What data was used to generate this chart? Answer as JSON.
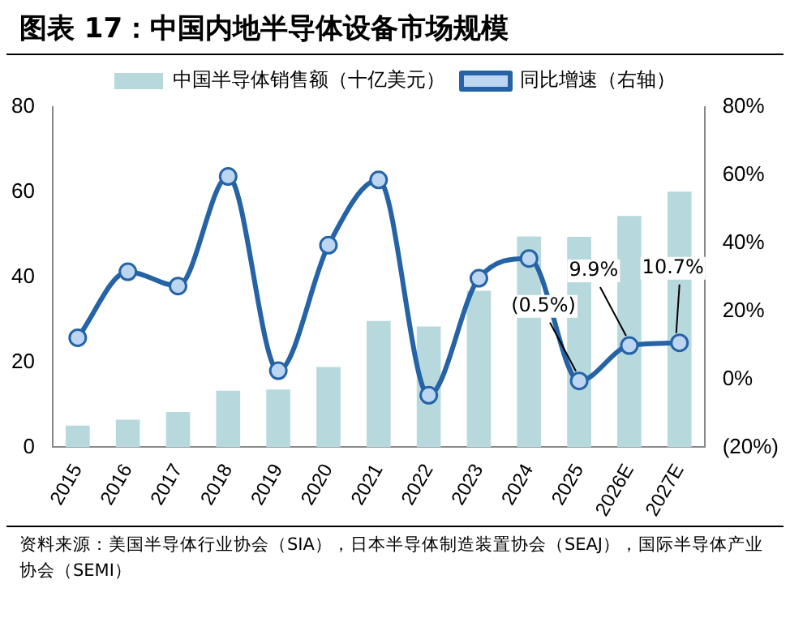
{
  "chart_data": {
    "type": "bar",
    "title": "图表 17：中国内地半导体设备市场规模",
    "categories": [
      "2015",
      "2016",
      "2017",
      "2018",
      "2019",
      "2020",
      "2021",
      "2022",
      "2023",
      "2024",
      "2025",
      "2026E",
      "2027E"
    ],
    "series": [
      {
        "name": "中国半导体销售额（十亿美元）",
        "color": "#b7d9dd",
        "values": [
          5.1,
          6.5,
          8.3,
          13.3,
          13.6,
          18.9,
          29.7,
          28.4,
          36.8,
          49.6,
          49.5,
          54.4,
          60.1
        ]
      },
      {
        "name": "同比增速（右轴）",
        "type": "line",
        "axis": "y2",
        "color": "#2563a6",
        "values": [
          12.2,
          31.6,
          27.4,
          59.6,
          2.5,
          39.4,
          58.6,
          -4.7,
          29.7,
          35.5,
          -0.5,
          9.9,
          10.7
        ],
        "value_labels": [
          null,
          null,
          null,
          null,
          null,
          null,
          null,
          null,
          null,
          null,
          "(0.5%)",
          "9.9%",
          "10.7%"
        ]
      }
    ],
    "ylim": [
      0,
      80
    ],
    "yticks": [
      0,
      20,
      40,
      60,
      80
    ],
    "y2lim": [
      -20,
      80
    ],
    "y2ticks": [
      {
        "value": -20,
        "label": "(20%)"
      },
      {
        "value": 0,
        "label": "0%"
      },
      {
        "value": 20,
        "label": "20%"
      },
      {
        "value": 40,
        "label": "40%"
      },
      {
        "value": 60,
        "label": "60%"
      },
      {
        "value": 80,
        "label": "80%"
      }
    ],
    "annotations": [
      "资料来源：美国半导体行业协会（SIA），日本半导体制造装置协会（SEAJ），国际半导体产业协会（SEMI）"
    ],
    "grid": false,
    "legend": "top",
    "marker": "circle",
    "line_style": "solid"
  }
}
